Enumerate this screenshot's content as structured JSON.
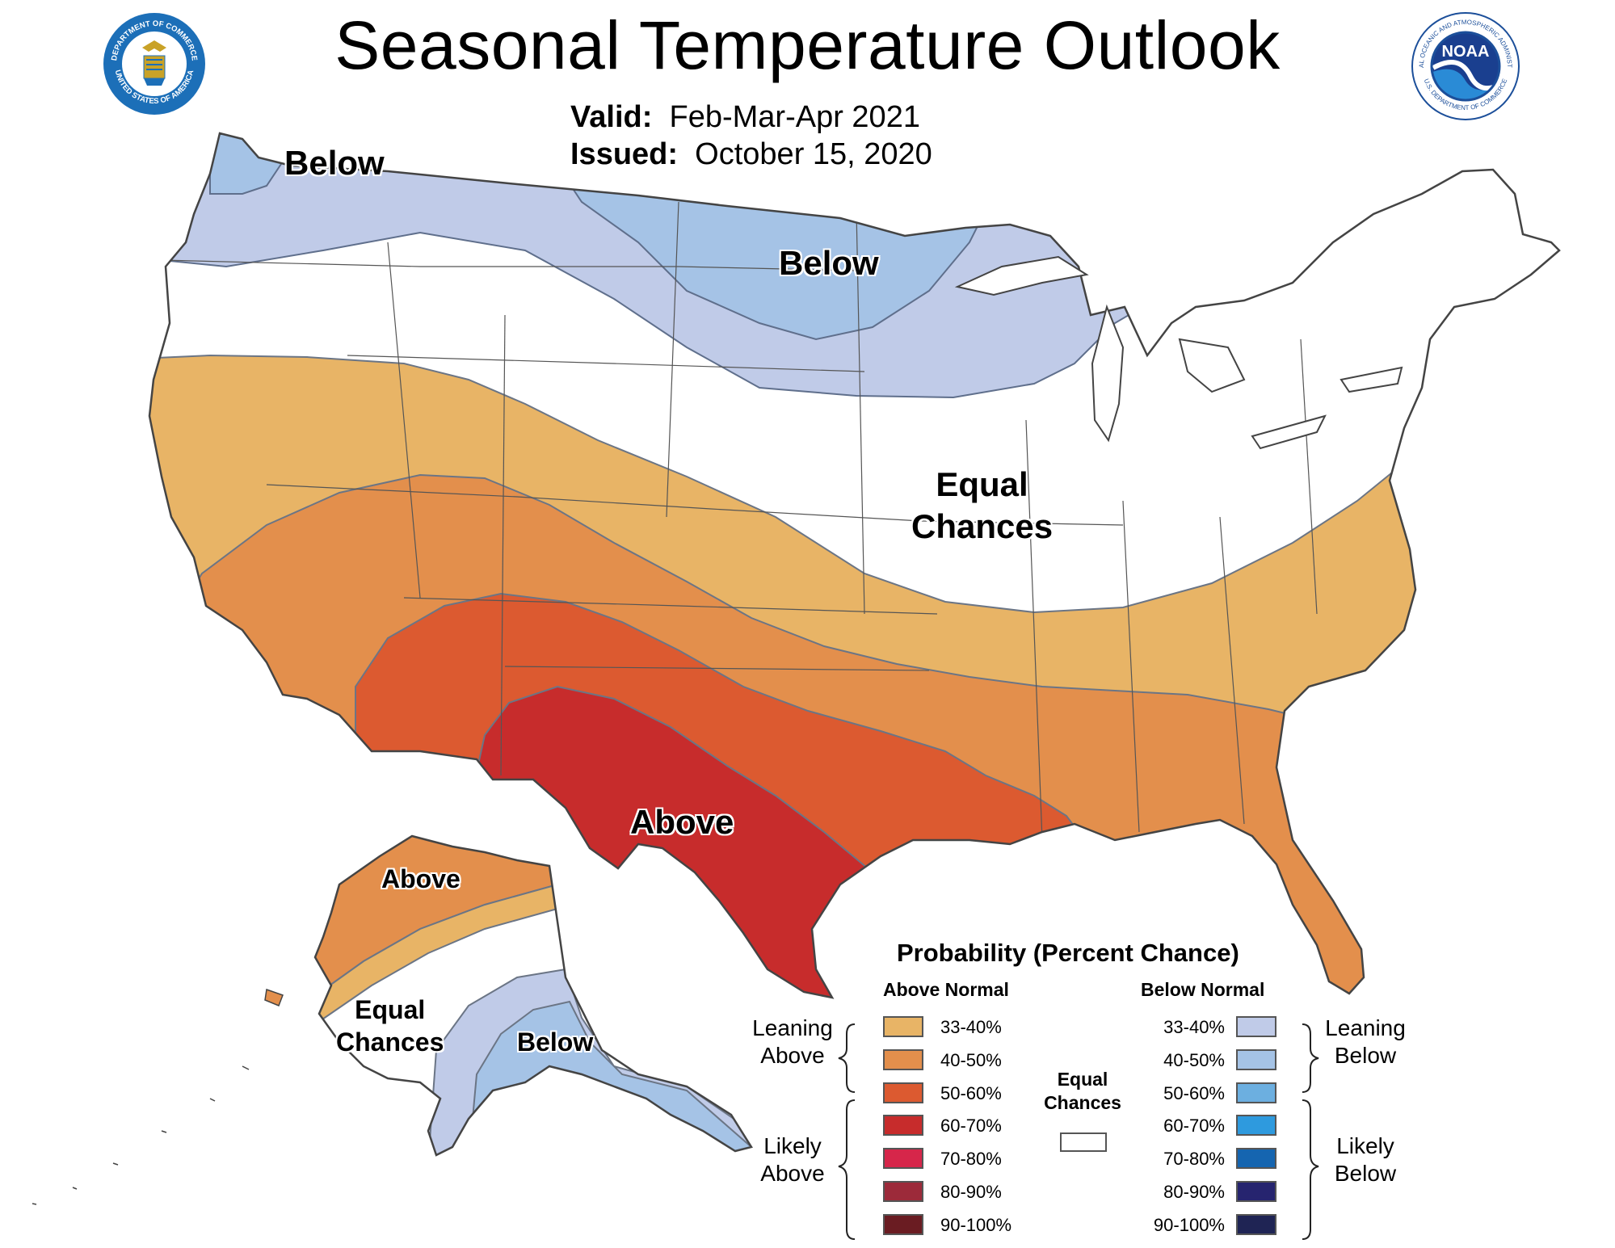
{
  "title": "Seasonal Temperature Outlook",
  "valid_label": "Valid:",
  "valid_value": "Feb-Mar-Apr 2021",
  "issued_label": "Issued:",
  "issued_value": "October 15, 2020",
  "logos": {
    "left": {
      "text_top": "DEPARTMENT OF COMMERCE",
      "text_bottom": "UNITED STATES OF AMERICA"
    },
    "right": {
      "text_center": "NOAA",
      "text_top": "NATIONAL OCEANIC AND ATMOSPHERIC ADMINISTRATION",
      "text_bottom": "U.S. DEPARTMENT OF COMMERCE"
    }
  },
  "map_labels": {
    "nw_below": "Below",
    "north_below": "Below",
    "equal_chances_line1": "Equal",
    "equal_chances_line2": "Chances",
    "south_above": "Above",
    "ak_above": "Above",
    "ak_equal_line1": "Equal",
    "ak_equal_line2": "Chances",
    "ak_below": "Below"
  },
  "legend": {
    "title": "Probability (Percent Chance)",
    "above_header": "Above Normal",
    "below_header": "Below Normal",
    "above": [
      {
        "label": "33-40%",
        "color": "#e8b466"
      },
      {
        "label": "40-50%",
        "color": "#e38f4c"
      },
      {
        "label": "50-60%",
        "color": "#dc5a30"
      },
      {
        "label": "60-70%",
        "color": "#c72c2c"
      },
      {
        "label": "70-80%",
        "color": "#d6264a"
      },
      {
        "label": "80-90%",
        "color": "#9c2a3a"
      },
      {
        "label": "90-100%",
        "color": "#6a1c22"
      }
    ],
    "below": [
      {
        "label": "33-40%",
        "color": "#c0cbe8"
      },
      {
        "label": "40-50%",
        "color": "#a5c3e6"
      },
      {
        "label": "50-60%",
        "color": "#6cafe0"
      },
      {
        "label": "60-70%",
        "color": "#2e9ade"
      },
      {
        "label": "70-80%",
        "color": "#1565b0"
      },
      {
        "label": "80-90%",
        "color": "#26246f"
      },
      {
        "label": "90-100%",
        "color": "#1f2454"
      }
    ],
    "leaning_above_1": "Leaning",
    "leaning_above_2": "Above",
    "likely_above_1": "Likely",
    "likely_above_2": "Above",
    "leaning_below_1": "Leaning",
    "leaning_below_2": "Below",
    "likely_below_1": "Likely",
    "likely_below_2": "Below",
    "equal_1": "Equal",
    "equal_2": "Chances"
  }
}
